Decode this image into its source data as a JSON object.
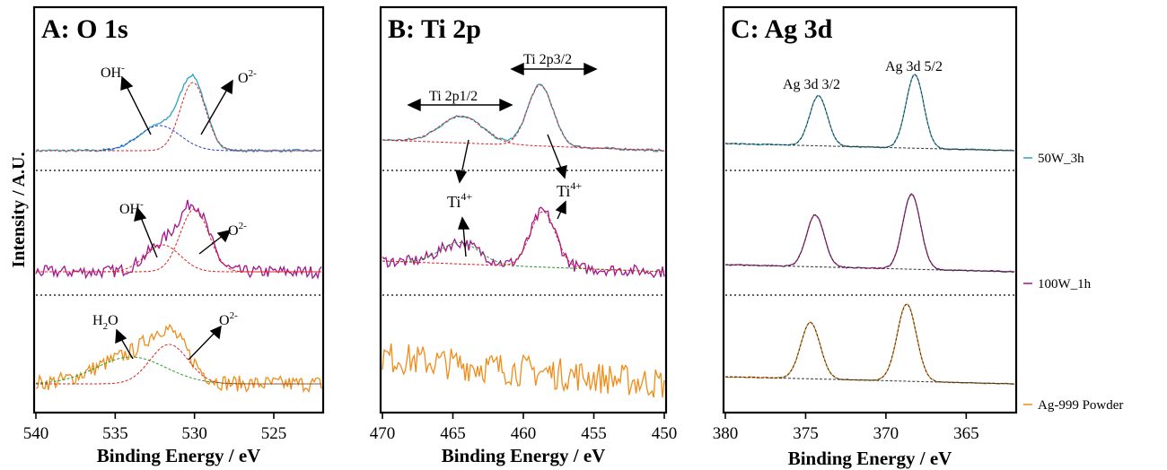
{
  "figure": {
    "ylabel": "Intensity / A.U.",
    "legend": [
      {
        "label": "50W_3h",
        "color": "#2aa3bf"
      },
      {
        "label": "100W_1h",
        "color": "#a3148f"
      },
      {
        "label": "Ag-999 Powder",
        "color": "#f08c18"
      }
    ]
  },
  "chart_data": [
    {
      "type": "line",
      "title": "A: O 1s",
      "xlabel": "Binding Energy / eV",
      "xlim": [
        540,
        522
      ],
      "xticks": [
        540,
        535,
        530,
        525
      ],
      "x_reversed": true,
      "annotations": [
        "OH-",
        "O2-",
        "OH-",
        "O2-",
        "H2O",
        "O2-"
      ],
      "series": [
        {
          "name": "50W_3h",
          "component_peaks": [
            {
              "label": "OH-",
              "center": 532.2
            },
            {
              "label": "O2-",
              "center": 530.1
            }
          ]
        },
        {
          "name": "100W_1h",
          "component_peaks": [
            {
              "label": "OH-",
              "center": 532.0
            },
            {
              "label": "O2-",
              "center": 530.0
            }
          ]
        },
        {
          "name": "Ag-999 Powder",
          "component_peaks": [
            {
              "label": "H2O",
              "center": 534.0
            },
            {
              "label": "O2-",
              "center": 531.6
            }
          ]
        }
      ]
    },
    {
      "type": "line",
      "title": "B: Ti 2p",
      "xlabel": "Binding Energy / eV",
      "xlim": [
        470,
        450
      ],
      "xticks": [
        470,
        465,
        460,
        455,
        450
      ],
      "x_reversed": true,
      "annotations": [
        "Ti 2p1/2",
        "Ti 2p3/2",
        "Ti4+",
        "Ti4+"
      ],
      "series": [
        {
          "name": "50W_3h",
          "component_peaks": [
            {
              "label": "Ti 2p1/2",
              "center": 464.4
            },
            {
              "label": "Ti 2p3/2",
              "center": 458.8
            }
          ]
        },
        {
          "name": "100W_1h",
          "component_peaks": [
            {
              "label": "Ti4+",
              "center": 464.5
            },
            {
              "label": "Ti4+",
              "center": 458.6
            }
          ]
        },
        {
          "name": "Ag-999 Powder",
          "component_peaks": []
        }
      ]
    },
    {
      "type": "line",
      "title": "C: Ag 3d",
      "xlabel": "Binding Energy / eV",
      "xlim": [
        380,
        362
      ],
      "xticks": [
        380,
        375,
        370,
        365
      ],
      "x_reversed": true,
      "annotations": [
        "Ag 3d 3/2",
        "Ag 3d 5/2"
      ],
      "series": [
        {
          "name": "50W_3h",
          "component_peaks": [
            {
              "label": "Ag 3d 3/2",
              "center": 374.2
            },
            {
              "label": "Ag 3d 5/2",
              "center": 368.2
            }
          ]
        },
        {
          "name": "100W_1h",
          "component_peaks": [
            {
              "center": 374.4
            },
            {
              "center": 368.4
            }
          ]
        },
        {
          "name": "Ag-999 Powder",
          "component_peaks": [
            {
              "center": 374.7
            },
            {
              "center": 368.7
            }
          ]
        }
      ]
    }
  ]
}
